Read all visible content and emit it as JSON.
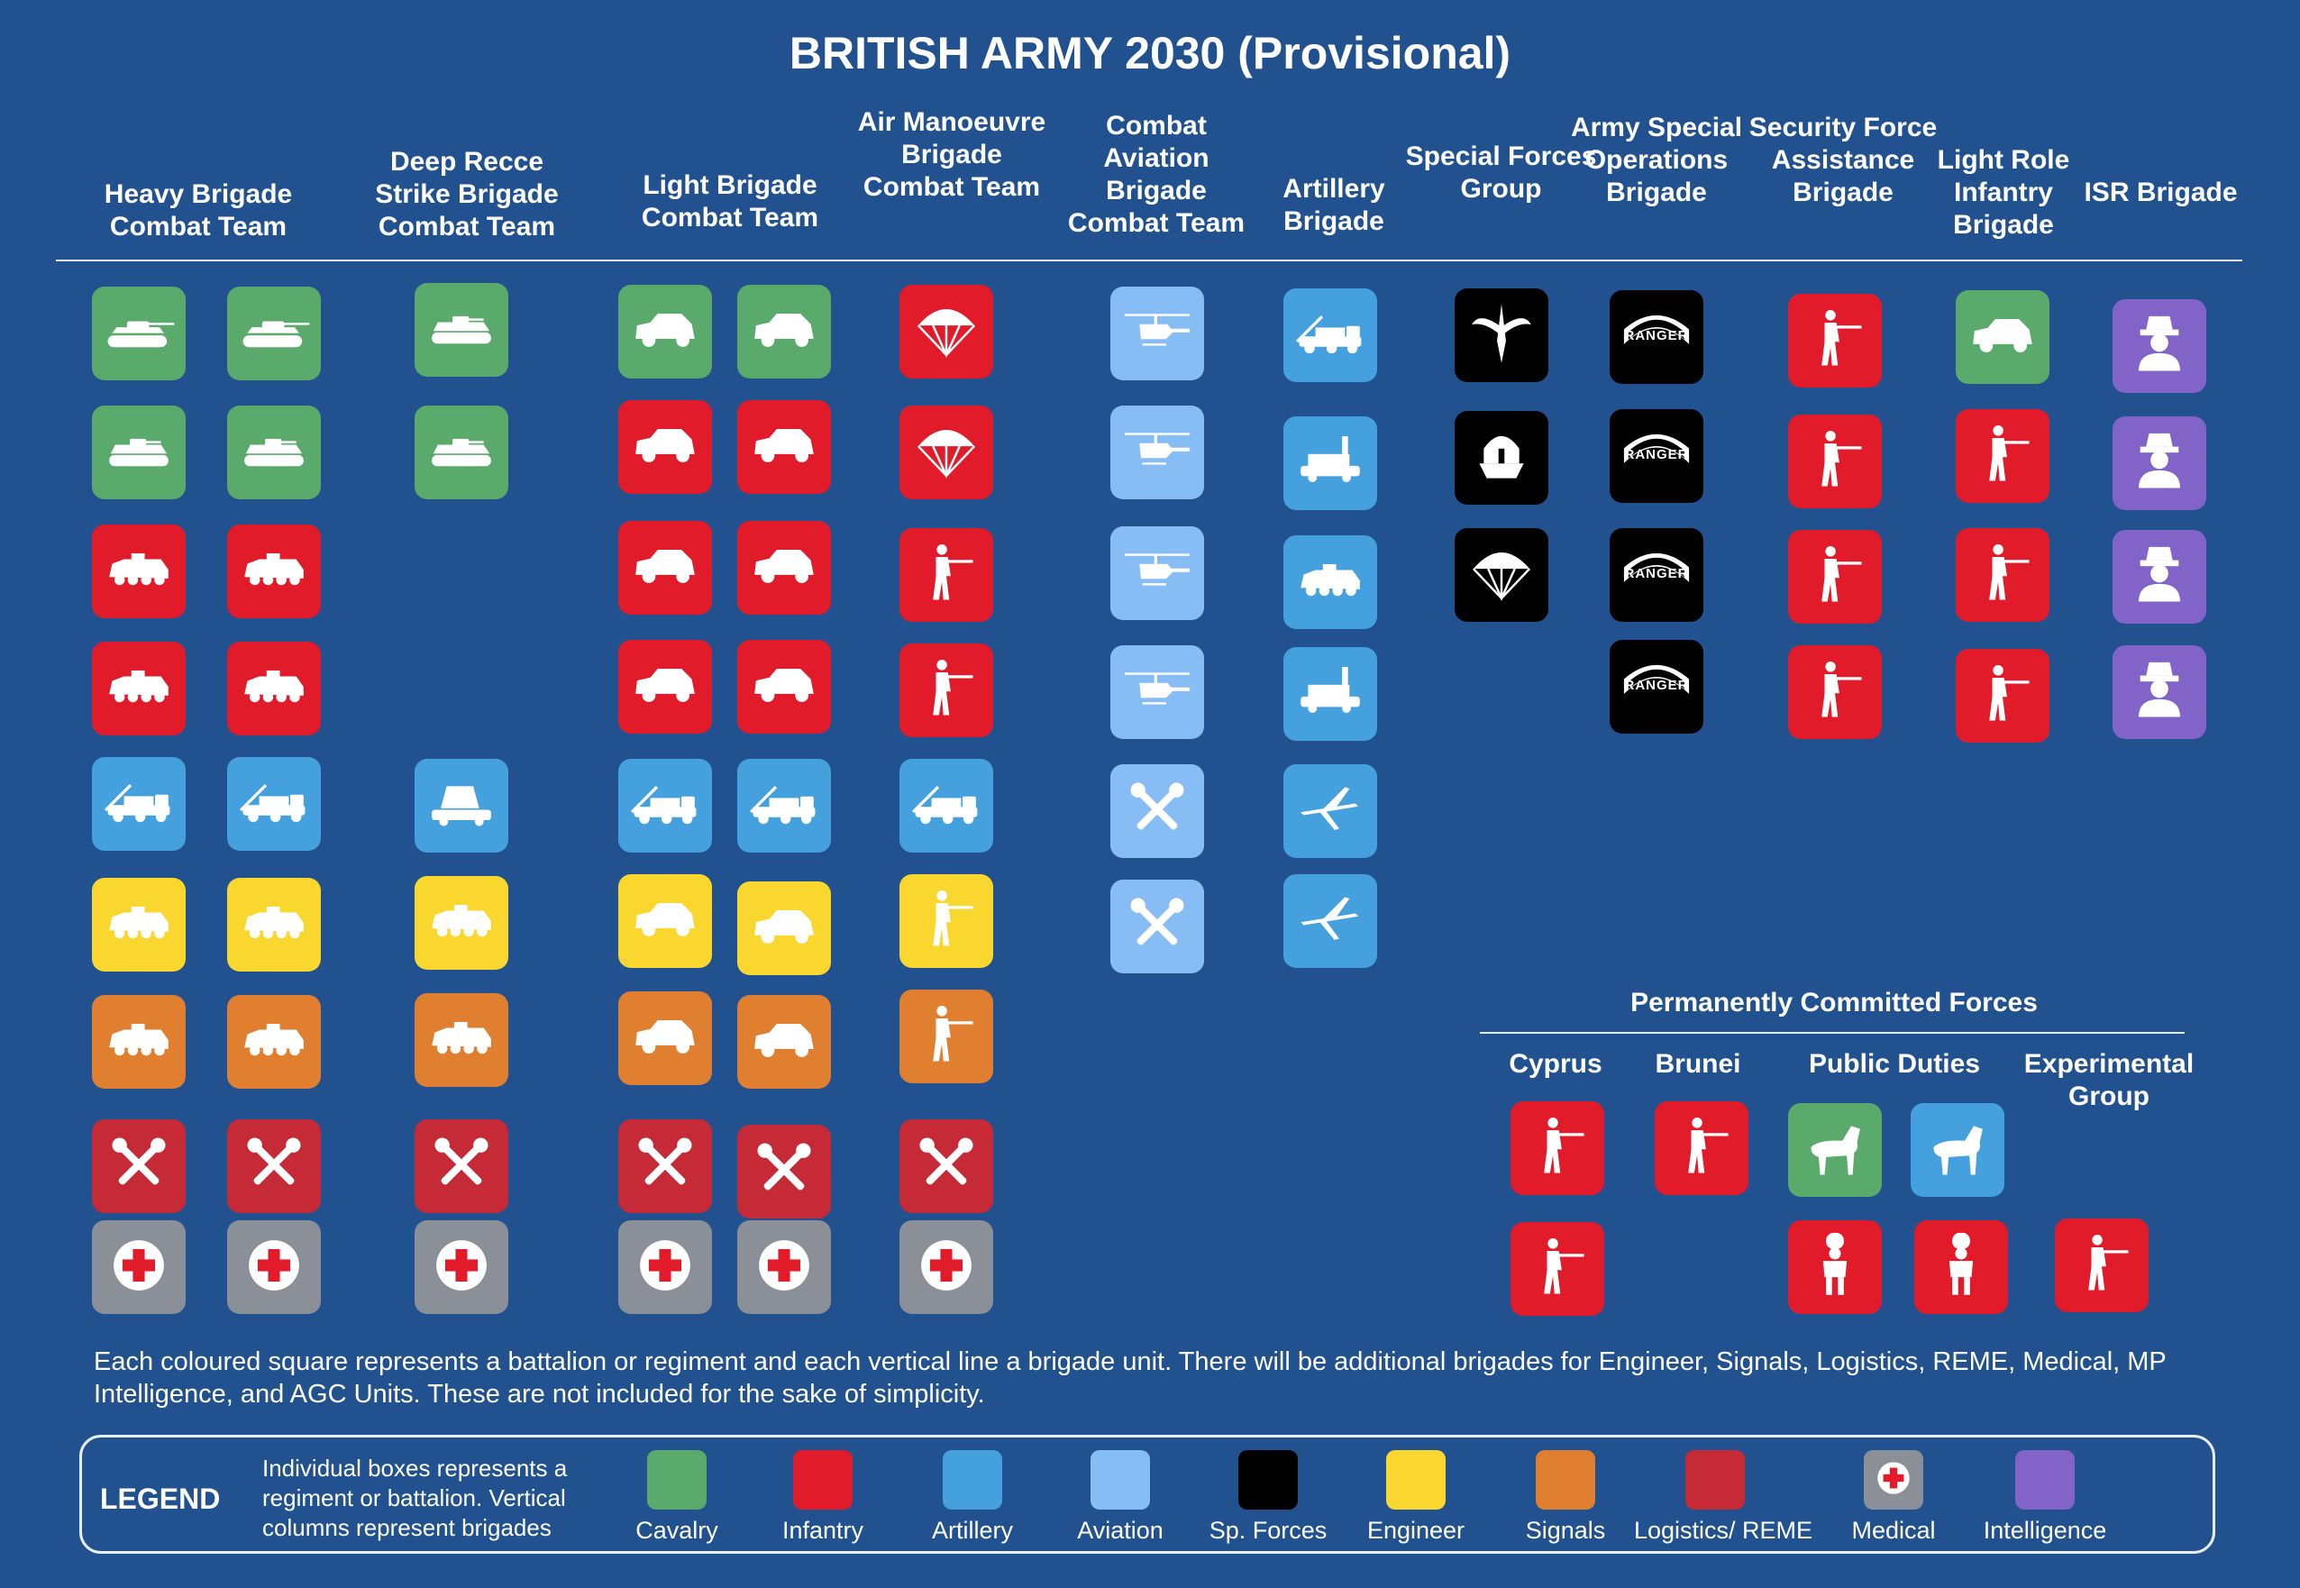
{
  "title": "BRITISH ARMY 2030 (Provisional)",
  "columns": [
    {
      "label": "Heavy Brigade Combat Team"
    },
    {
      "label": "Deep Recce Strike Brigade Combat Team"
    },
    {
      "label": "Light Brigade Combat Team"
    },
    {
      "label": "Air Manoeuvre Brigade Combat Team"
    },
    {
      "label": "Combat Aviation Brigade Combat Team"
    },
    {
      "label": "Artillery Brigade"
    },
    {
      "label": "Special Forces Group"
    },
    {
      "label": "Army Special Operations Brigade"
    },
    {
      "label": "Security Force Assistance Brigade"
    },
    {
      "label": "Light Role Infantry Brigade"
    },
    {
      "label": "ISR Brigade"
    }
  ],
  "units": {
    "heavy_a": [
      [
        "cavalry",
        "tank-icon"
      ],
      [
        "cavalry",
        "ifv-icon"
      ],
      [
        "infantry",
        "apc-icon"
      ],
      [
        "infantry",
        "apc-icon"
      ],
      [
        "artillery",
        "gun-truck-icon"
      ],
      [
        "engineer",
        "apc-icon"
      ],
      [
        "signals",
        "apc-icon"
      ],
      [
        "logistics",
        "wrench-icon"
      ],
      [
        "medical",
        "medical-cross-icon"
      ]
    ],
    "heavy_b": [
      [
        "cavalry",
        "tank-icon"
      ],
      [
        "cavalry",
        "ifv-icon"
      ],
      [
        "infantry",
        "apc-icon"
      ],
      [
        "infantry",
        "apc-icon"
      ],
      [
        "artillery",
        "gun-truck-icon"
      ],
      [
        "engineer",
        "apc-icon"
      ],
      [
        "signals",
        "apc-icon"
      ],
      [
        "logistics",
        "wrench-icon"
      ],
      [
        "medical",
        "medical-cross-icon"
      ]
    ],
    "deep_recce": [
      [
        "cavalry",
        "ifv-icon"
      ],
      [
        "cavalry",
        "ifv-icon"
      ],
      [
        "artillery",
        "rocket-launcher-icon"
      ],
      [
        "engineer",
        "apc-icon"
      ],
      [
        "signals",
        "apc-icon"
      ],
      [
        "logistics",
        "wrench-icon"
      ],
      [
        "medical",
        "medical-cross-icon"
      ]
    ],
    "light_a": [
      [
        "cavalry",
        "light-vehicle-icon"
      ],
      [
        "infantry",
        "light-vehicle-icon"
      ],
      [
        "infantry",
        "light-vehicle-icon"
      ],
      [
        "infantry",
        "light-vehicle-icon"
      ],
      [
        "artillery",
        "gun-truck-icon"
      ],
      [
        "engineer",
        "light-vehicle-icon"
      ],
      [
        "signals",
        "light-vehicle-icon"
      ],
      [
        "logistics",
        "wrench-icon"
      ],
      [
        "medical",
        "medical-cross-icon"
      ]
    ],
    "light_b": [
      [
        "cavalry",
        "light-vehicle-icon"
      ],
      [
        "infantry",
        "light-vehicle-icon"
      ],
      [
        "infantry",
        "light-vehicle-icon"
      ],
      [
        "infantry",
        "light-vehicle-icon"
      ],
      [
        "artillery",
        "gun-truck-icon"
      ],
      [
        "engineer",
        "light-vehicle-icon"
      ],
      [
        "signals",
        "light-vehicle-icon"
      ],
      [
        "logistics",
        "wrench-icon"
      ],
      [
        "medical",
        "medical-cross-icon"
      ]
    ],
    "air_manoeuvre": [
      [
        "infantry",
        "parachute-icon"
      ],
      [
        "infantry",
        "parachute-icon"
      ],
      [
        "infantry",
        "rifleman-icon"
      ],
      [
        "infantry",
        "rifleman-icon"
      ],
      [
        "artillery",
        "gun-truck-icon"
      ],
      [
        "engineer",
        "rifleman-icon"
      ],
      [
        "signals",
        "rifleman-icon"
      ],
      [
        "logistics",
        "wrench-icon"
      ],
      [
        "medical",
        "medical-cross-icon"
      ]
    ],
    "aviation": [
      [
        "aviation",
        "helicopter-icon"
      ],
      [
        "aviation",
        "helicopter-icon"
      ],
      [
        "aviation",
        "helicopter-icon"
      ],
      [
        "aviation",
        "helicopter-icon"
      ],
      [
        "aviation",
        "wrench-icon"
      ],
      [
        "aviation",
        "wrench-icon"
      ]
    ],
    "artillery": [
      [
        "artillery",
        "gun-truck-icon"
      ],
      [
        "artillery",
        "radar-vehicle-icon"
      ],
      [
        "artillery",
        "apc-icon"
      ],
      [
        "artillery",
        "radar-vehicle-icon"
      ],
      [
        "artillery",
        "drone-icon"
      ],
      [
        "artillery",
        "drone-icon"
      ]
    ],
    "special_forces": [
      [
        "sp_forces",
        "winged-dagger-icon"
      ],
      [
        "sp_forces",
        "helmet-badge-icon"
      ],
      [
        "sp_forces",
        "parachute-icon"
      ]
    ],
    "special_ops": [
      [
        "sp_forces",
        "ranger-tab-icon"
      ],
      [
        "sp_forces",
        "ranger-tab-icon"
      ],
      [
        "sp_forces",
        "ranger-tab-icon"
      ],
      [
        "sp_forces",
        "ranger-tab-icon"
      ]
    ],
    "sfa": [
      [
        "infantry",
        "rifleman-icon"
      ],
      [
        "infantry",
        "rifleman-icon"
      ],
      [
        "infantry",
        "rifleman-icon"
      ],
      [
        "infantry",
        "rifleman-icon"
      ]
    ],
    "light_role": [
      [
        "cavalry",
        "light-vehicle-icon"
      ],
      [
        "infantry",
        "rifleman-icon"
      ],
      [
        "infantry",
        "rifleman-icon"
      ],
      [
        "infantry",
        "rifleman-icon"
      ]
    ],
    "isr": [
      [
        "intelligence",
        "spy-icon"
      ],
      [
        "intelligence",
        "spy-icon"
      ],
      [
        "intelligence",
        "spy-icon"
      ],
      [
        "intelligence",
        "spy-icon"
      ]
    ]
  },
  "ranger_text": "RANGER",
  "permanently_committed": {
    "title": "Permanently Committed Forces",
    "headings": [
      {
        "label": "Cyprus"
      },
      {
        "label": "Brunei"
      },
      {
        "label": "Public Duties"
      },
      {
        "label": "Experimental Group"
      }
    ],
    "tiles": [
      [
        "infantry",
        "rifleman-icon"
      ],
      [
        "infantry",
        "rifleman-icon"
      ],
      [
        "infantry",
        "rifleman-icon"
      ],
      [
        "cavalry",
        "horse-icon"
      ],
      [
        "artillery",
        "horse-icon"
      ],
      [
        "infantry",
        "guardsman-icon"
      ],
      [
        "infantry",
        "guardsman-icon"
      ],
      [
        "infantry",
        "rifleman-icon"
      ]
    ]
  },
  "note": "Each coloured square represents a battalion or regiment and each vertical line a brigade unit. There will be additional brigades for Engineer, Signals, Logistics, REME, Medical, MP Intelligence, and AGC Units. These are not included for the sake of simplicity.",
  "legend": {
    "title": "LEGEND",
    "description": "Individual boxes represents a regiment or battalion. Vertical columns represent brigades",
    "items": [
      {
        "label": "Cavalry",
        "type": "cavalry"
      },
      {
        "label": "Infantry",
        "type": "infantry"
      },
      {
        "label": "Artillery",
        "type": "artillery"
      },
      {
        "label": "Aviation",
        "type": "aviation"
      },
      {
        "label": "Sp. Forces",
        "type": "sp_forces"
      },
      {
        "label": "Engineer",
        "type": "engineer"
      },
      {
        "label": "Signals",
        "type": "signals"
      },
      {
        "label": "Logistics/ REME",
        "type": "logistics"
      },
      {
        "label": "Medical",
        "type": "medical"
      },
      {
        "label": "Intelligence",
        "type": "intelligence"
      }
    ]
  },
  "colors": {
    "background": "#21528f",
    "cavalry": "#5aaa6c",
    "infantry": "#e21b2a",
    "artillery": "#45a0de",
    "aviation": "#86bdf4",
    "sp_forces": "#000000",
    "engineer": "#fad72e",
    "signals": "#e07f30",
    "logistics": "#c62a36",
    "medical": "#8b8f97",
    "intelligence": "#8263c8"
  }
}
